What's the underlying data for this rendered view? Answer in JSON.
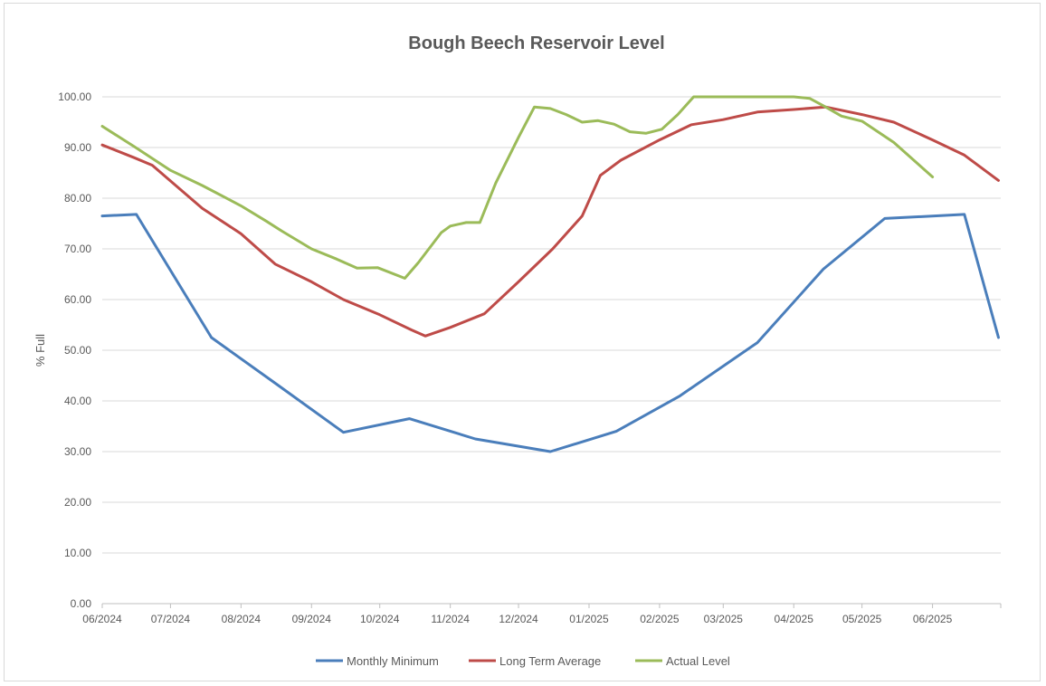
{
  "chart_data": {
    "type": "line",
    "title": "Bough Beech Reservoir Level",
    "xlabel": "",
    "ylabel": "% Full",
    "ylim": [
      0,
      100
    ],
    "yticks": [
      "0.00",
      "10.00",
      "20.00",
      "30.00",
      "40.00",
      "50.00",
      "60.00",
      "70.00",
      "80.00",
      "90.00",
      "100.00"
    ],
    "xlim": [
      "2024-06-01",
      "2025-07-01"
    ],
    "xticks": [
      {
        "date": "2024-06-01",
        "label": "06/2024"
      },
      {
        "date": "2024-07-01",
        "label": "07/2024"
      },
      {
        "date": "2024-08-01",
        "label": "08/2024"
      },
      {
        "date": "2024-09-01",
        "label": "09/2024"
      },
      {
        "date": "2024-10-01",
        "label": "10/2024"
      },
      {
        "date": "2024-11-01",
        "label": "11/2024"
      },
      {
        "date": "2024-12-01",
        "label": "12/2024"
      },
      {
        "date": "2025-01-01",
        "label": "01/2025"
      },
      {
        "date": "2025-02-01",
        "label": "02/2025"
      },
      {
        "date": "2025-03-01",
        "label": "03/2025"
      },
      {
        "date": "2025-04-01",
        "label": "04/2025"
      },
      {
        "date": "2025-05-01",
        "label": "05/2025"
      },
      {
        "date": "2025-06-01",
        "label": "06/2025"
      }
    ],
    "grid": true,
    "legend": "bottom",
    "series": [
      {
        "name": "Monthly Minimum",
        "color": "#4a7ebb",
        "points": [
          [
            "2024-06-01",
            76.5
          ],
          [
            "2024-06-16",
            76.8
          ],
          [
            "2024-07-19",
            52.5
          ],
          [
            "2024-08-16",
            43.5
          ],
          [
            "2024-09-15",
            33.8
          ],
          [
            "2024-10-14",
            36.5
          ],
          [
            "2024-11-12",
            32.5
          ],
          [
            "2024-12-15",
            30.0
          ],
          [
            "2025-01-13",
            34.0
          ],
          [
            "2025-02-10",
            41.0
          ],
          [
            "2025-03-16",
            51.5
          ],
          [
            "2025-04-14",
            66.0
          ],
          [
            "2025-05-11",
            76.0
          ],
          [
            "2025-06-15",
            76.8
          ],
          [
            "2025-06-30",
            52.5
          ]
        ]
      },
      {
        "name": "Long Term Average",
        "color": "#be4b48",
        "points": [
          [
            "2024-06-01",
            90.5
          ],
          [
            "2024-06-15",
            88.0
          ],
          [
            "2024-06-23",
            86.5
          ],
          [
            "2024-07-15",
            78.0
          ],
          [
            "2024-08-01",
            73.0
          ],
          [
            "2024-08-16",
            67.0
          ],
          [
            "2024-09-01",
            63.5
          ],
          [
            "2024-09-15",
            60.0
          ],
          [
            "2024-10-01",
            57.0
          ],
          [
            "2024-10-15",
            54.0
          ],
          [
            "2024-10-21",
            52.8
          ],
          [
            "2024-11-01",
            54.5
          ],
          [
            "2024-11-16",
            57.2
          ],
          [
            "2024-12-01",
            63.5
          ],
          [
            "2024-12-16",
            70.0
          ],
          [
            "2024-12-29",
            76.5
          ],
          [
            "2025-01-06",
            84.5
          ],
          [
            "2025-01-15",
            87.5
          ],
          [
            "2025-02-01",
            91.5
          ],
          [
            "2025-02-15",
            94.5
          ],
          [
            "2025-03-01",
            95.5
          ],
          [
            "2025-03-16",
            97.0
          ],
          [
            "2025-04-01",
            97.5
          ],
          [
            "2025-04-15",
            98.0
          ],
          [
            "2025-05-01",
            96.5
          ],
          [
            "2025-05-15",
            95.0
          ],
          [
            "2025-06-01",
            91.5
          ],
          [
            "2025-06-15",
            88.5
          ],
          [
            "2025-06-30",
            83.5
          ]
        ]
      },
      {
        "name": "Actual Level",
        "color": "#9bbb59",
        "points": [
          [
            "2024-06-01",
            94.2
          ],
          [
            "2024-06-15",
            90.2
          ],
          [
            "2024-07-01",
            85.5
          ],
          [
            "2024-07-15",
            82.5
          ],
          [
            "2024-08-01",
            78.5
          ],
          [
            "2024-08-12",
            75.5
          ],
          [
            "2024-08-19",
            73.5
          ],
          [
            "2024-09-01",
            70.0
          ],
          [
            "2024-09-12",
            68.0
          ],
          [
            "2024-09-21",
            66.2
          ],
          [
            "2024-09-30",
            66.3
          ],
          [
            "2024-10-12",
            64.2
          ],
          [
            "2024-10-18",
            67.3
          ],
          [
            "2024-10-28",
            73.2
          ],
          [
            "2024-11-01",
            74.5
          ],
          [
            "2024-11-08",
            75.2
          ],
          [
            "2024-11-14",
            75.2
          ],
          [
            "2024-11-21",
            83.0
          ],
          [
            "2024-12-01",
            92.0
          ],
          [
            "2024-12-08",
            98.0
          ],
          [
            "2024-12-15",
            97.7
          ],
          [
            "2024-12-22",
            96.5
          ],
          [
            "2024-12-29",
            95.0
          ],
          [
            "2025-01-05",
            95.3
          ],
          [
            "2025-01-12",
            94.6
          ],
          [
            "2025-01-19",
            93.1
          ],
          [
            "2025-01-26",
            92.8
          ],
          [
            "2025-02-02",
            93.6
          ],
          [
            "2025-02-09",
            96.5
          ],
          [
            "2025-02-16",
            100.0
          ],
          [
            "2025-03-01",
            100.0
          ],
          [
            "2025-04-01",
            100.0
          ],
          [
            "2025-04-08",
            99.7
          ],
          [
            "2025-04-15",
            98.0
          ],
          [
            "2025-04-22",
            96.2
          ],
          [
            "2025-05-01",
            95.2
          ],
          [
            "2025-05-15",
            91.0
          ],
          [
            "2025-06-01",
            84.2
          ]
        ]
      }
    ]
  }
}
